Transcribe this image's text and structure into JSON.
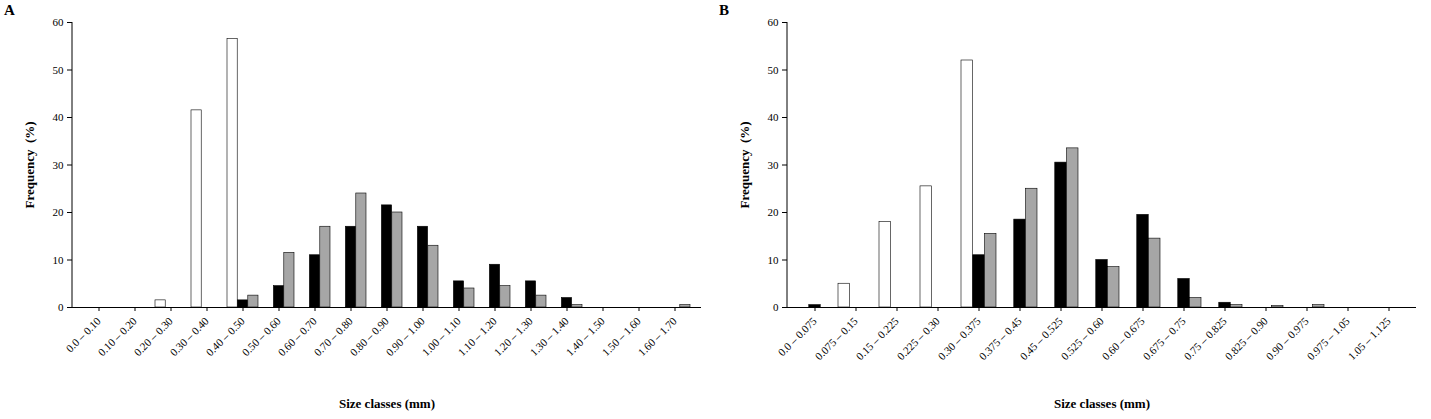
{
  "chart_data": [
    {
      "type": "bar",
      "title": "A",
      "xlabel": "Size classes (mm)",
      "ylabel": "Frequency  (%)",
      "categories": [
        "0.0 – 0.10",
        "0.10 – 0.20",
        "0.20 – 0.30",
        "0.30 – 0.40",
        "0.40 – 0.50",
        "0.50 – 0.60",
        "0.60 – 0.70",
        "0.70 – 0.80",
        "0.80 – 0.90",
        "0.90 – 1.00",
        "1.00 – 1.10",
        "1.10 – 1.20",
        "1.20 – 1.30",
        "1.30 – 1.40",
        "1.40 – 1.50",
        "1.50 – 1.60",
        "1.60 – 1.70"
      ],
      "series": [
        {
          "color": "#ffffff",
          "values": [
            0,
            0,
            1.5,
            41.5,
            56.5,
            0,
            0,
            0,
            0,
            0,
            0,
            0,
            0,
            0,
            0,
            0,
            0
          ]
        },
        {
          "color": "#000000",
          "values": [
            0,
            0,
            0,
            0,
            1.5,
            4.5,
            11,
            17,
            21.5,
            17,
            5.5,
            9,
            5.5,
            2,
            0,
            0,
            0
          ]
        },
        {
          "color": "#a6a6a6",
          "values": [
            0,
            0,
            0,
            0,
            2.5,
            11.5,
            17,
            24,
            20,
            13,
            4,
            4.5,
            2.5,
            0.5,
            0,
            0,
            0.5
          ]
        }
      ],
      "ylim": [
        0,
        60
      ],
      "yticks": [
        0,
        10,
        20,
        30,
        40,
        50,
        60
      ],
      "grid": false
    },
    {
      "type": "bar",
      "title": "B",
      "xlabel": "Size classes (mm)",
      "ylabel": "Frequency  (%)",
      "categories": [
        "0.0 – 0.075",
        "0.075 – 0.15",
        "0.15 – 0.225",
        "0.225 – 0.30",
        "0.30 – 0.375",
        "0.375 – 0.45",
        "0.45 – 0.525",
        "0.525 – 0.60",
        "0.60 – 0.675",
        "0.675 – 0.75",
        "0.75 – 0.825",
        "0.825 – 0.90",
        "0.90 – 0.975",
        "0.975 – 1.05",
        "1.05 – 1.125"
      ],
      "series": [
        {
          "color": "#ffffff",
          "values": [
            0,
            5,
            18,
            25.5,
            52,
            0,
            0,
            0,
            0,
            0,
            0,
            0,
            0,
            0,
            0
          ]
        },
        {
          "color": "#000000",
          "values": [
            0.5,
            0,
            0,
            0,
            11,
            18.5,
            30.5,
            10,
            19.5,
            6,
            1,
            0,
            0,
            0,
            0
          ]
        },
        {
          "color": "#a6a6a6",
          "values": [
            0,
            0,
            0,
            0,
            15.5,
            25,
            33.5,
            8.5,
            14.5,
            2,
            0.5,
            0.3,
            0.5,
            0,
            0
          ]
        }
      ],
      "ylim": [
        0,
        60
      ],
      "yticks": [
        0,
        10,
        20,
        30,
        40,
        50,
        60
      ],
      "grid": false
    }
  ]
}
